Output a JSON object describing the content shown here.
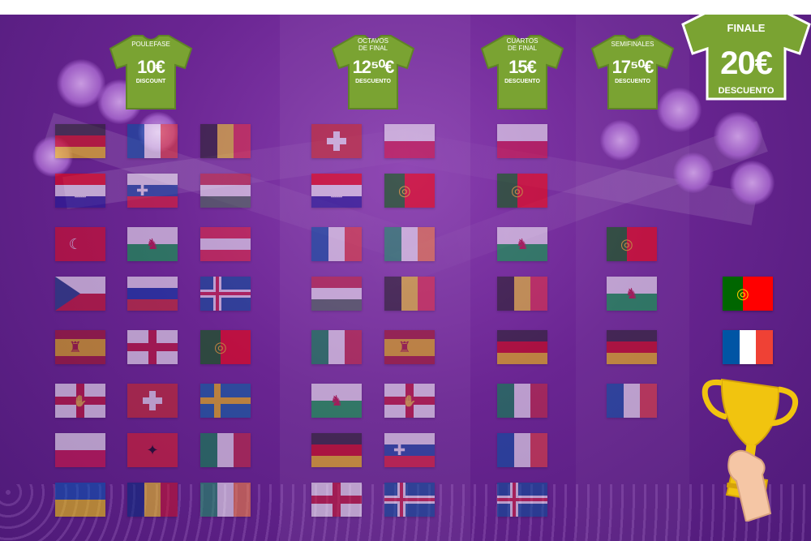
{
  "stages": {
    "group": {
      "label": "POULEFASE",
      "price": "10€",
      "discount": "DISCOUNT"
    },
    "round16": {
      "label": "OCTAVOS DE FINAL",
      "price": "12⁵⁰€",
      "discount": "DESCUENTO"
    },
    "quarter": {
      "label": "CUARTOS DE FINAL",
      "price": "15€",
      "discount": "DESCUENTO"
    },
    "semi": {
      "label": "SEMIFINALES",
      "price": "17⁵⁰€",
      "discount": "DESCUENTO"
    },
    "final": {
      "label": "FINALE",
      "price": "20€",
      "discount": "DESCUENTO"
    }
  },
  "colors": {
    "shirt": "#7aa332",
    "shirt_dark": "#5f8426",
    "background": "#6a2592"
  },
  "icons": {
    "trophy": "trophy-icon",
    "hand": "hand-icon",
    "flags": "flag-icon"
  },
  "finalists": [
    "Portugal",
    "France"
  ],
  "columns": {
    "group": [
      "Germany",
      "France",
      "Belgium",
      "Croatia",
      "Slovakia",
      "Hungary",
      "Turkey",
      "Wales",
      "Austria",
      "Czech Republic",
      "Russia",
      "Iceland",
      "Spain",
      "England",
      "Portugal",
      "Northern Ireland",
      "Switzerland",
      "Sweden",
      "Poland",
      "Albania",
      "Italy",
      "Ukraine",
      "Romania",
      "Ireland"
    ],
    "round16": [
      "Switzerland",
      "Poland",
      "Croatia",
      "Portugal",
      "France",
      "Ireland",
      "Hungary",
      "Belgium",
      "Italy",
      "Spain",
      "Wales",
      "Northern Ireland",
      "Germany",
      "Slovakia",
      "England",
      "Iceland"
    ],
    "quarter": [
      "Poland",
      "Portugal",
      "Wales",
      "Belgium",
      "Germany",
      "Italy",
      "France",
      "Iceland"
    ],
    "semi": [
      "Portugal",
      "Wales",
      "Germany",
      "France"
    ]
  }
}
